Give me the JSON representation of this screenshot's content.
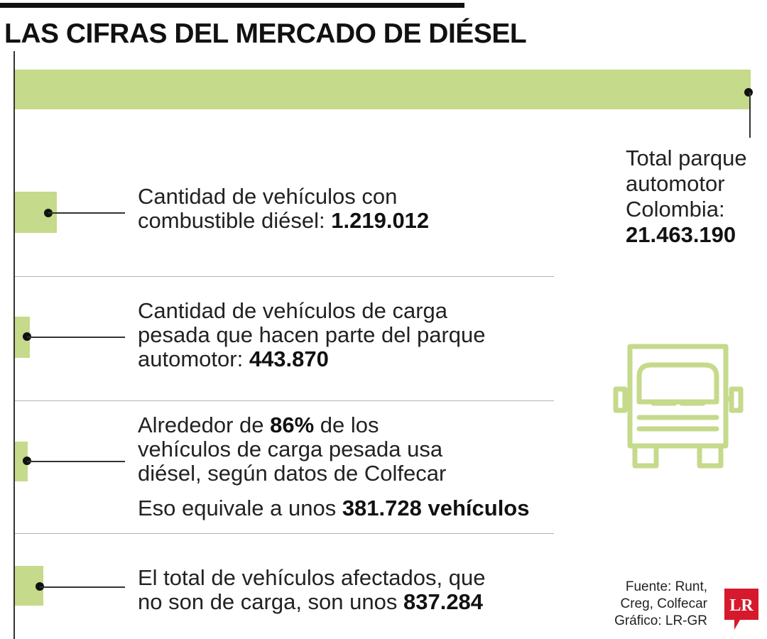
{
  "title": "LAS CIFRAS DEL MERCADO DE DIÉSEL",
  "total": {
    "label_line1": "Total parque",
    "label_line2": "automotor",
    "label_line3": "Colombia:",
    "value_text": "21.463.190"
  },
  "items": [
    {
      "line1": "Cantidad de vehículos con",
      "line2_pre": "combustible diésel: ",
      "line2_bold": "1.219.012"
    },
    {
      "line1": "Cantidad de vehículos de carga",
      "line2": "pesada que hacen parte del parque",
      "line3_pre": "automotor: ",
      "line3_bold": "443.870"
    },
    {
      "line1_pre": "Alrededor de ",
      "line1_bold": "86%",
      "line1_post": " de los",
      "line2": "vehículos de carga pesada usa",
      "line3": "diésel, según datos de Colfecar",
      "line4_pre": "Eso equivale a unos ",
      "line4_bold": "381.728 vehículos"
    },
    {
      "line1": "El total de vehículos afectados, que",
      "line2_pre": "no son de carga, son unos ",
      "line2_bold": "837.284"
    }
  ],
  "source": {
    "line1": "Fuente: Runt,",
    "line2": "Creg, Colfecar",
    "line3": "Gráfico: LR-GR"
  },
  "logo_text": "LR",
  "icons": {
    "truck": "truck-icon",
    "logo": "lr-logo-icon"
  },
  "colors": {
    "bar": "#c5da8b",
    "truck": "#c5da8b",
    "logo": "#d7192d",
    "text": "#222222"
  },
  "chart_data": {
    "type": "bar",
    "orientation": "horizontal",
    "title": "LAS CIFRAS DEL MERCADO DE DIÉSEL",
    "categories": [
      "Total parque automotor Colombia",
      "Cantidad de vehículos con combustible diésel",
      "Cantidad de vehículos de carga pesada que hacen parte del parque automotor",
      "Vehículos de carga pesada que usan diésel (86%)",
      "El total de vehículos afectados, que no son de carga"
    ],
    "values": [
      21463190,
      1219012,
      443870,
      381728,
      837284
    ],
    "percent_annotation": "86%",
    "grid": false,
    "legend": "none"
  }
}
